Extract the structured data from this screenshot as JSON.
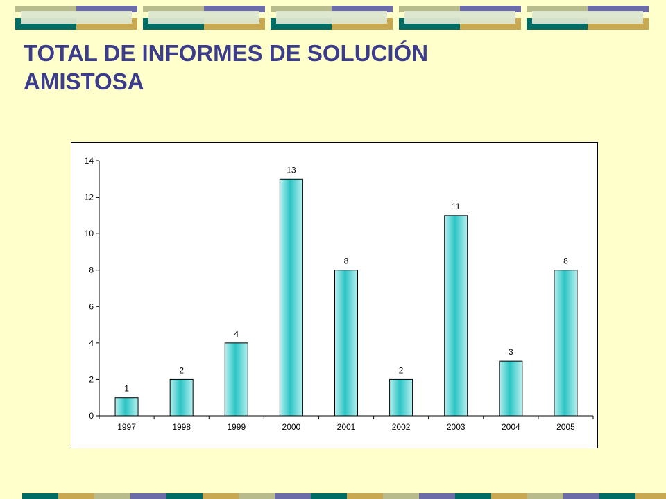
{
  "title": "TOTAL DE INFORMES DE SOLUCIÓN AMISTOSA",
  "colors": {
    "background": "#FFFFCC",
    "title": "#3C3C8C",
    "bar_light": "#B8F0F0",
    "bar_dark": "#2CC4C4",
    "band_olive": "#B8BC8C",
    "band_purple": "#6C6CA8",
    "band_teal": "#006C64",
    "band_gold": "#C8A850"
  },
  "chart_data": {
    "type": "bar",
    "categories": [
      "1997",
      "1998",
      "1999",
      "2000",
      "2001",
      "2002",
      "2003",
      "2004",
      "2005"
    ],
    "values": [
      1,
      2,
      4,
      13,
      8,
      2,
      11,
      3,
      8
    ],
    "data_labels": [
      "1",
      "2",
      "4",
      "13",
      "8",
      "2",
      "11",
      "3",
      "8"
    ],
    "yticks": [
      "0",
      "2",
      "4",
      "6",
      "8",
      "10",
      "12",
      "14"
    ],
    "ylim": [
      0,
      14
    ],
    "title": "",
    "xlabel": "",
    "ylabel": "",
    "legend": "none",
    "grid": false
  }
}
